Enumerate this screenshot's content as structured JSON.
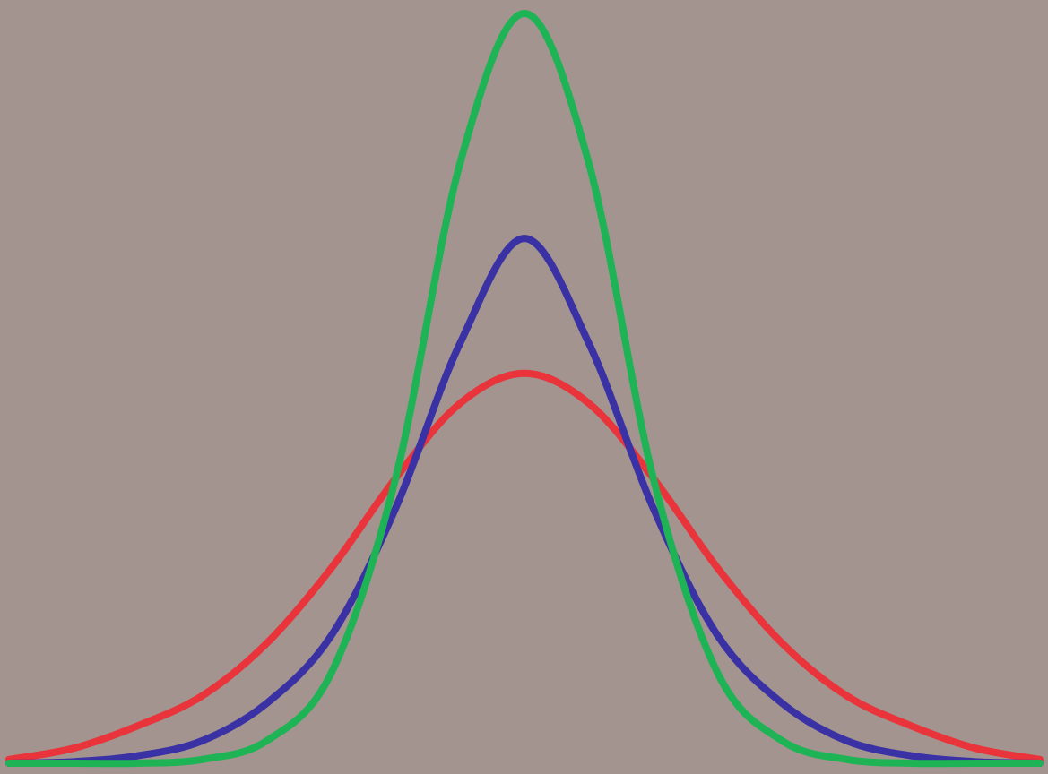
{
  "colors": {
    "background": "#a3948f"
  },
  "chart_data": {
    "type": "line",
    "title": "",
    "xlabel": "",
    "ylabel": "",
    "xlim": [
      -4,
      4
    ],
    "ylim": [
      0,
      1
    ],
    "grid": false,
    "axes_visible": false,
    "legend": "none",
    "series": [
      {
        "color": "#e8343a",
        "mean": 0,
        "peak": 0.52,
        "shape": "wide, heavy-tailed",
        "x": [
          -4,
          -3.5,
          -3,
          -2.5,
          -2,
          -1.5,
          -1,
          -0.5,
          0,
          0.5,
          1,
          1.5,
          2,
          2.5,
          3,
          3.5,
          4
        ],
        "y": [
          0.005,
          0.02,
          0.05,
          0.09,
          0.16,
          0.26,
          0.38,
          0.48,
          0.52,
          0.48,
          0.38,
          0.26,
          0.16,
          0.09,
          0.05,
          0.02,
          0.005
        ]
      },
      {
        "color": "#3a32a4",
        "mean": 0,
        "peak": 0.7,
        "shape": "medium, peaked",
        "x": [
          -4,
          -3.5,
          -3,
          -2.5,
          -2,
          -1.5,
          -1,
          -0.5,
          0,
          0.5,
          1,
          1.5,
          2,
          2.5,
          3,
          3.5,
          4
        ],
        "y": [
          0.0,
          0.002,
          0.01,
          0.03,
          0.08,
          0.17,
          0.34,
          0.56,
          0.7,
          0.56,
          0.34,
          0.17,
          0.08,
          0.03,
          0.01,
          0.002,
          0.0
        ]
      },
      {
        "color": "#1eb354",
        "mean": 0,
        "peak": 1.0,
        "shape": "narrow, tall",
        "x": [
          -4,
          -3.5,
          -3,
          -2.5,
          -2,
          -1.5,
          -1,
          -0.5,
          0,
          0.5,
          1,
          1.5,
          2,
          2.5,
          3,
          3.5,
          4
        ],
        "y": [
          0.0,
          0.0,
          0.0,
          0.005,
          0.03,
          0.12,
          0.38,
          0.8,
          1.0,
          0.8,
          0.38,
          0.12,
          0.03,
          0.005,
          0.0,
          0.0,
          0.0
        ]
      }
    ]
  }
}
